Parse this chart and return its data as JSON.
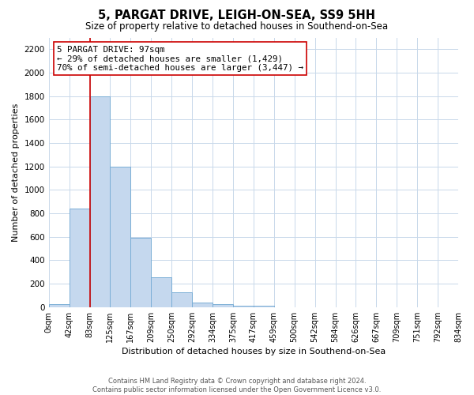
{
  "title": "5, PARGAT DRIVE, LEIGH-ON-SEA, SS9 5HH",
  "subtitle": "Size of property relative to detached houses in Southend-on-Sea",
  "xlabel": "Distribution of detached houses by size in Southend-on-Sea",
  "ylabel": "Number of detached properties",
  "bin_labels": [
    "0sqm",
    "42sqm",
    "83sqm",
    "125sqm",
    "167sqm",
    "209sqm",
    "250sqm",
    "292sqm",
    "334sqm",
    "375sqm",
    "417sqm",
    "459sqm",
    "500sqm",
    "542sqm",
    "584sqm",
    "626sqm",
    "667sqm",
    "709sqm",
    "751sqm",
    "792sqm",
    "834sqm"
  ],
  "bar_heights": [
    25,
    840,
    1800,
    1200,
    590,
    255,
    125,
    40,
    25,
    15,
    10,
    0,
    0,
    0,
    0,
    0,
    0,
    0,
    0,
    0
  ],
  "bar_color": "#c5d8ee",
  "bar_edge_color": "#7aaed6",
  "property_line_x": 2,
  "property_line_color": "#cc0000",
  "ylim": [
    0,
    2300
  ],
  "yticks": [
    0,
    200,
    400,
    600,
    800,
    1000,
    1200,
    1400,
    1600,
    1800,
    2000,
    2200
  ],
  "annotation_line1": "5 PARGAT DRIVE: 97sqm",
  "annotation_line2": "← 29% of detached houses are smaller (1,429)",
  "annotation_line3": "70% of semi-detached houses are larger (3,447) →",
  "footer_line1": "Contains HM Land Registry data © Crown copyright and database right 2024.",
  "footer_line2": "Contains public sector information licensed under the Open Government Licence v3.0.",
  "background_color": "#ffffff",
  "grid_color": "#c8d8ea"
}
